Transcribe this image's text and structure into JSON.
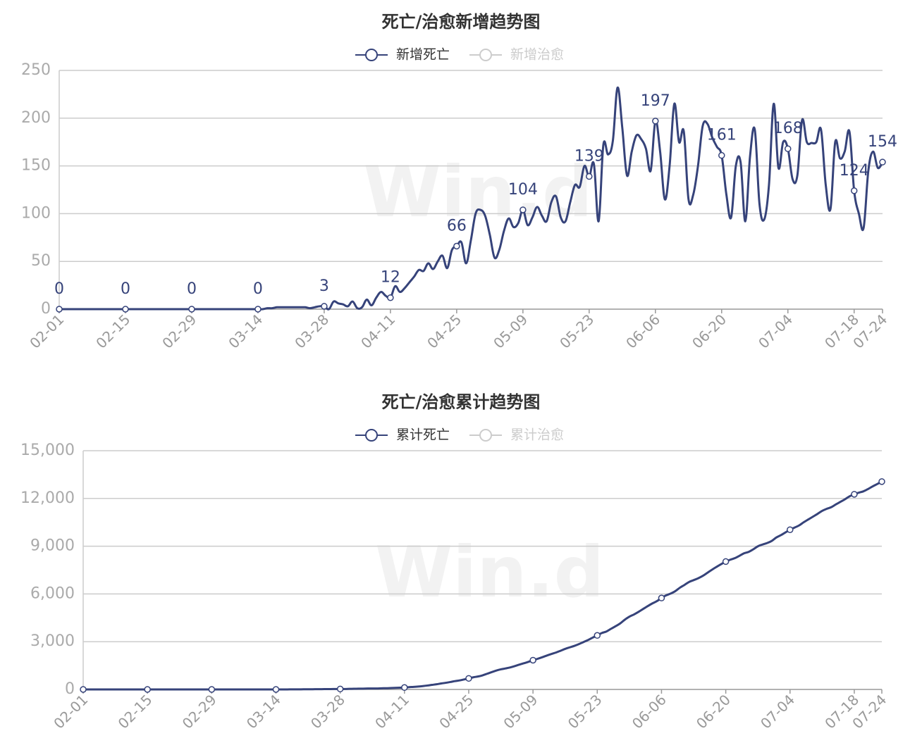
{
  "chart_data": [
    {
      "type": "line",
      "title": "死亡/治愈新增趋势图",
      "watermark": "Win.d",
      "categories": [
        "02-01",
        null,
        null,
        null,
        null,
        null,
        null,
        null,
        null,
        null,
        null,
        null,
        null,
        null,
        "02-15",
        null,
        null,
        null,
        null,
        null,
        null,
        null,
        null,
        null,
        null,
        null,
        null,
        null,
        "02-29",
        null,
        null,
        null,
        null,
        null,
        null,
        null,
        null,
        null,
        null,
        null,
        null,
        null,
        "03-14",
        null,
        null,
        null,
        null,
        null,
        null,
        null,
        null,
        null,
        null,
        null,
        null,
        null,
        "03-28",
        null,
        null,
        null,
        null,
        null,
        null,
        null,
        null,
        null,
        null,
        null,
        null,
        null,
        "04-11",
        null,
        null,
        null,
        null,
        null,
        null,
        null,
        null,
        null,
        null,
        null,
        null,
        null,
        "04-25",
        null,
        null,
        null,
        null,
        null,
        null,
        null,
        null,
        null,
        null,
        null,
        null,
        null,
        "05-09",
        null,
        null,
        null,
        null,
        null,
        null,
        null,
        null,
        null,
        null,
        null,
        null,
        null,
        "05-23",
        null,
        null,
        null,
        null,
        null,
        null,
        null,
        null,
        null,
        null,
        null,
        null,
        null,
        "06-06",
        null,
        null,
        null,
        null,
        null,
        null,
        null,
        null,
        null,
        null,
        null,
        null,
        null,
        "06-20",
        null,
        null,
        null,
        null,
        null,
        null,
        null,
        null,
        null,
        null,
        null,
        null,
        null,
        "07-04",
        null,
        null,
        null,
        null,
        null,
        null,
        null,
        null,
        null,
        null,
        null,
        null,
        null,
        "07-18",
        null,
        null,
        null,
        null,
        null,
        "07-24"
      ],
      "series": [
        {
          "name": "新增死亡",
          "color": "#36437a",
          "values": [
            0,
            0,
            0,
            0,
            0,
            0,
            0,
            0,
            0,
            0,
            0,
            0,
            0,
            0,
            0,
            0,
            0,
            0,
            0,
            0,
            0,
            0,
            0,
            0,
            0,
            0,
            0,
            0,
            0,
            0,
            0,
            0,
            0,
            0,
            0,
            0,
            0,
            0,
            0,
            0,
            0,
            0,
            0,
            0,
            1,
            1,
            2,
            2,
            2,
            2,
            2,
            2,
            2,
            1,
            2,
            3,
            3,
            0,
            8,
            6,
            5,
            3,
            8,
            1,
            2,
            10,
            4,
            12,
            18,
            14,
            12,
            24,
            18,
            22,
            28,
            34,
            41,
            40,
            48,
            42,
            50,
            56,
            43,
            62,
            66,
            70,
            48,
            72,
            100,
            104,
            98,
            78,
            54,
            62,
            82,
            95,
            86,
            90,
            104,
            88,
            96,
            107,
            98,
            92,
            112,
            118,
            96,
            92,
            112,
            130,
            128,
            150,
            139,
            152,
            92,
            172,
            162,
            176,
            232,
            190,
            140,
            165,
            182,
            178,
            168,
            145,
            197,
            165,
            115,
            150,
            215,
            175,
            186,
            115,
            120,
            150,
            192,
            194,
            180,
            170,
            161,
            120,
            96,
            150,
            154,
            92,
            160,
            188,
            110,
            94,
            130,
            215,
            148,
            175,
            168,
            136,
            140,
            198,
            175,
            174,
            175,
            188,
            130,
            105,
            175,
            158,
            165,
            186,
            124,
            100,
            85,
            145,
            165,
            148,
            154
          ]
        },
        {
          "name": "新增治愈",
          "color": "#cccccc",
          "visible": false
        }
      ],
      "ylim": [
        0,
        250
      ],
      "yticks": [
        0,
        50,
        100,
        150,
        200,
        250
      ],
      "grid": true
    },
    {
      "type": "line",
      "title": "死亡/治愈累计趋势图",
      "watermark": "Win.d",
      "categories": [
        "02-01",
        null,
        null,
        null,
        null,
        null,
        null,
        null,
        null,
        null,
        null,
        null,
        null,
        null,
        "02-15",
        null,
        null,
        null,
        null,
        null,
        null,
        null,
        null,
        null,
        null,
        null,
        null,
        null,
        "02-29",
        null,
        null,
        null,
        null,
        null,
        null,
        null,
        null,
        null,
        null,
        null,
        null,
        null,
        "03-14",
        null,
        null,
        null,
        null,
        null,
        null,
        null,
        null,
        null,
        null,
        null,
        null,
        null,
        "03-28",
        null,
        null,
        null,
        null,
        null,
        null,
        null,
        null,
        null,
        null,
        null,
        null,
        null,
        "04-11",
        null,
        null,
        null,
        null,
        null,
        null,
        null,
        null,
        null,
        null,
        null,
        null,
        null,
        "04-25",
        null,
        null,
        null,
        null,
        null,
        null,
        null,
        null,
        null,
        null,
        null,
        null,
        null,
        "05-09",
        null,
        null,
        null,
        null,
        null,
        null,
        null,
        null,
        null,
        null,
        null,
        null,
        null,
        "05-23",
        null,
        null,
        null,
        null,
        null,
        null,
        null,
        null,
        null,
        null,
        null,
        null,
        null,
        "06-06",
        null,
        null,
        null,
        null,
        null,
        null,
        null,
        null,
        null,
        null,
        null,
        null,
        null,
        "06-20",
        null,
        null,
        null,
        null,
        null,
        null,
        null,
        null,
        null,
        null,
        null,
        null,
        null,
        "07-04",
        null,
        null,
        null,
        null,
        null,
        null,
        null,
        null,
        null,
        null,
        null,
        null,
        null,
        "07-18",
        null,
        null,
        null,
        null,
        null,
        "07-24"
      ],
      "series": [
        {
          "name": "累计死亡",
          "color": "#36437a",
          "values": [
            0,
            0,
            0,
            0,
            0,
            0,
            0,
            0,
            0,
            0,
            0,
            0,
            0,
            0,
            0,
            0,
            0,
            0,
            0,
            0,
            0,
            0,
            0,
            0,
            0,
            0,
            0,
            0,
            0,
            0,
            0,
            0,
            0,
            0,
            0,
            0,
            0,
            0,
            0,
            0,
            0,
            0,
            0,
            1,
            2,
            3,
            5,
            7,
            9,
            11,
            13,
            15,
            18,
            21,
            24,
            27,
            30,
            30,
            38,
            44,
            49,
            52,
            60,
            61,
            63,
            73,
            77,
            89,
            100,
            110,
            120,
            144,
            162,
            184,
            212,
            246,
            287,
            327,
            375,
            417,
            467,
            523,
            566,
            628,
            694,
            764,
            812,
            884,
            984,
            1088,
            1186,
            1264,
            1318,
            1380,
            1462,
            1557,
            1643,
            1733,
            1837,
            1925,
            2021,
            2128,
            2226,
            2318,
            2430,
            2548,
            2644,
            2736,
            2848,
            2978,
            3106,
            3256,
            3395,
            3547,
            3639,
            3811,
            3973,
            4149,
            4381,
            4571,
            4711,
            4876,
            5058,
            5236,
            5404,
            5549,
            5746,
            5911,
            6026,
            6176,
            6391,
            6566,
            6752,
            6867,
            6987,
            7137,
            7329,
            7523,
            7703,
            7873,
            8034,
            8154,
            8250,
            8400,
            8554,
            8646,
            8806,
            8994,
            9104,
            9198,
            9328,
            9543,
            9691,
            9866,
            10034,
            10170,
            10310,
            10508,
            10683,
            10857,
            11032,
            11220,
            11350,
            11455,
            11630,
            11788,
            11953,
            12139,
            12263,
            12363,
            12448,
            12593,
            12758,
            12906,
            13060
          ]
        },
        {
          "name": "累计治愈",
          "color": "#cccccc",
          "visible": false
        }
      ],
      "ylim": [
        0,
        15000
      ],
      "yticks": [
        0,
        {
          "value": 3000,
          "label": "3,000"
        },
        {
          "value": 6000,
          "label": "6,000"
        },
        {
          "value": 9000,
          "label": "9,000"
        },
        {
          "value": 12000,
          "label": "12,000"
        },
        {
          "value": 15000,
          "label": "15,000"
        }
      ],
      "grid": true
    }
  ]
}
